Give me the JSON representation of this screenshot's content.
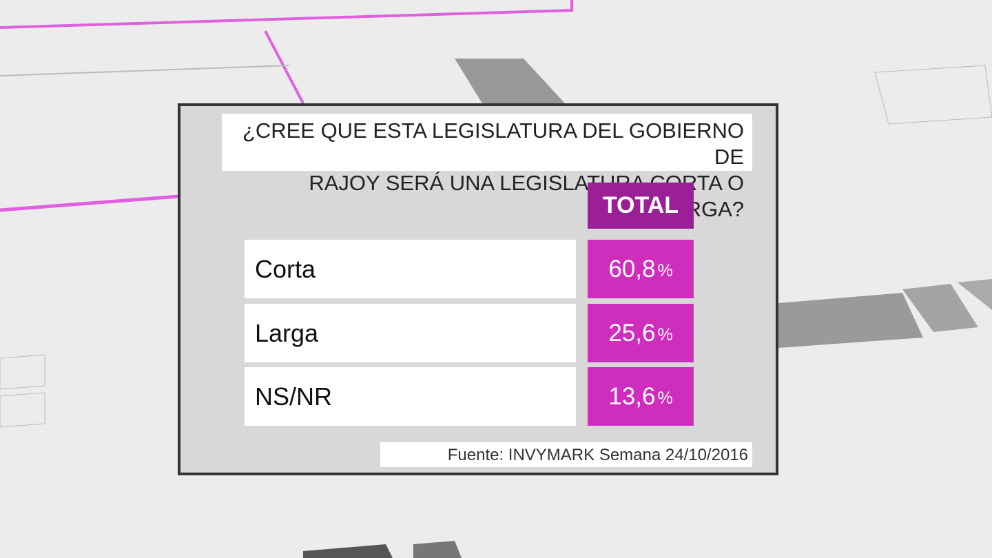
{
  "header": {
    "title_lines": [
      "¿CREE QUE ESTA LEGISLATURA DEL GOBIERNO DE",
      "RAJOY SERÁ UNA LEGISLATURA CORTA O LARGA?"
    ]
  },
  "table": {
    "column_header": "TOTAL",
    "rows": [
      {
        "label": "Corta",
        "value": "60,8",
        "unit": "%"
      },
      {
        "label": "Larga",
        "value": "25,6",
        "unit": "%"
      },
      {
        "label": "NS/NR",
        "value": "13,6",
        "unit": "%"
      }
    ]
  },
  "footer": {
    "source": "Fuente: INVYMARK  Semana 24/10/2016"
  }
}
